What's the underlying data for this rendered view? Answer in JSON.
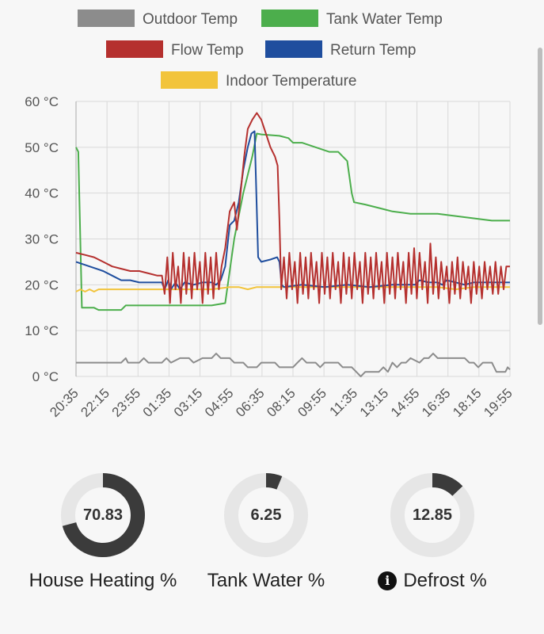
{
  "chart_data": {
    "type": "line",
    "yunit": "°C",
    "ylim": [
      0,
      60
    ],
    "yticks": [
      "0 °C",
      "10 °C",
      "20 °C",
      "30 °C",
      "40 °C",
      "50 °C",
      "60 °C"
    ],
    "xlim": [
      0,
      96
    ],
    "xtick_labels": [
      "20:35",
      "22:15",
      "23:55",
      "01:35",
      "03:15",
      "04:55",
      "06:35",
      "08:15",
      "09:55",
      "11:35",
      "13:15",
      "14:55",
      "16:35",
      "18:15",
      "19:55"
    ],
    "legend_position": "top",
    "grid": true,
    "series": [
      {
        "name": "Outdoor Temp",
        "color": "#8c8c8c",
        "points": [
          [
            0,
            3
          ],
          [
            10,
            3
          ],
          [
            11,
            4
          ],
          [
            11.5,
            3
          ],
          [
            14,
            3
          ],
          [
            15,
            4
          ],
          [
            16,
            3
          ],
          [
            19,
            3
          ],
          [
            20,
            4
          ],
          [
            21,
            3
          ],
          [
            23,
            4
          ],
          [
            25,
            4
          ],
          [
            26,
            3
          ],
          [
            28,
            4
          ],
          [
            30,
            4
          ],
          [
            31,
            5
          ],
          [
            32,
            4
          ],
          [
            34,
            4
          ],
          [
            35,
            3
          ],
          [
            37,
            3
          ],
          [
            38,
            2
          ],
          [
            40,
            2
          ],
          [
            41,
            3
          ],
          [
            44,
            3
          ],
          [
            45,
            2
          ],
          [
            48,
            2
          ],
          [
            49,
            3
          ],
          [
            50,
            4
          ],
          [
            51,
            3
          ],
          [
            53,
            3
          ],
          [
            54,
            2
          ],
          [
            55,
            3
          ],
          [
            58,
            3
          ],
          [
            59,
            2
          ],
          [
            61,
            2
          ],
          [
            62,
            1
          ],
          [
            63,
            0
          ],
          [
            64,
            1
          ],
          [
            67,
            1
          ],
          [
            68,
            2
          ],
          [
            69,
            1
          ],
          [
            70,
            3
          ],
          [
            71,
            2
          ],
          [
            72,
            3
          ],
          [
            73,
            3
          ],
          [
            74,
            4
          ],
          [
            76,
            3
          ],
          [
            77,
            4
          ],
          [
            78,
            4
          ],
          [
            79,
            5
          ],
          [
            80,
            4
          ],
          [
            86,
            4
          ],
          [
            87,
            3
          ],
          [
            88,
            3
          ],
          [
            89,
            2
          ],
          [
            90,
            3
          ],
          [
            92,
            3
          ],
          [
            93,
            1
          ],
          [
            95,
            1
          ],
          [
            95.5,
            2
          ],
          [
            96,
            1.5
          ]
        ]
      },
      {
        "name": "Tank Water Temp",
        "color": "#4cae4c",
        "points": [
          [
            0,
            50
          ],
          [
            0.5,
            49
          ],
          [
            1.3,
            15
          ],
          [
            4,
            15
          ],
          [
            5,
            14.5
          ],
          [
            10,
            14.5
          ],
          [
            11,
            15.5
          ],
          [
            30,
            15.5
          ],
          [
            33,
            16
          ],
          [
            35,
            30
          ],
          [
            37,
            40
          ],
          [
            39,
            48
          ],
          [
            40,
            53
          ],
          [
            41,
            52.8
          ],
          [
            45,
            52.5
          ],
          [
            47,
            52
          ],
          [
            48,
            51
          ],
          [
            50,
            51
          ],
          [
            53,
            50
          ],
          [
            56,
            49
          ],
          [
            58,
            49
          ],
          [
            59,
            48
          ],
          [
            60,
            47
          ],
          [
            61,
            40
          ],
          [
            61.5,
            38
          ],
          [
            64,
            37.5
          ],
          [
            66,
            37
          ],
          [
            68,
            36.5
          ],
          [
            70,
            36
          ],
          [
            74,
            35.5
          ],
          [
            80,
            35.5
          ],
          [
            84,
            35
          ],
          [
            88,
            34.5
          ],
          [
            92,
            34
          ],
          [
            96,
            34
          ]
        ]
      },
      {
        "name": "Flow Temp",
        "color": "#b5302e",
        "points": [
          [
            0,
            27
          ],
          [
            2,
            26.5
          ],
          [
            4,
            26
          ],
          [
            6,
            25
          ],
          [
            8,
            24
          ],
          [
            10,
            23.5
          ],
          [
            12,
            23
          ],
          [
            14,
            23
          ],
          [
            16,
            22.5
          ],
          [
            18,
            22
          ],
          [
            19,
            22
          ],
          [
            19.6,
            18
          ],
          [
            20.2,
            26
          ],
          [
            20.8,
            16
          ],
          [
            21.4,
            27
          ],
          [
            22,
            19
          ],
          [
            22.6,
            24
          ],
          [
            23.2,
            16
          ],
          [
            23.8,
            27
          ],
          [
            24.4,
            18
          ],
          [
            25,
            26
          ],
          [
            25.6,
            17
          ],
          [
            26.2,
            27
          ],
          [
            26.8,
            19
          ],
          [
            27.4,
            25
          ],
          [
            28,
            16
          ],
          [
            28.6,
            27
          ],
          [
            29.2,
            18
          ],
          [
            29.8,
            26
          ],
          [
            30.4,
            17
          ],
          [
            31,
            27
          ],
          [
            31.6,
            19
          ],
          [
            32.2,
            24
          ],
          [
            33,
            28
          ],
          [
            34,
            36
          ],
          [
            35,
            38
          ],
          [
            35.6,
            32
          ],
          [
            36.4,
            40
          ],
          [
            37.2,
            48
          ],
          [
            38,
            54
          ],
          [
            39,
            56
          ],
          [
            40,
            57.5
          ],
          [
            41,
            56
          ],
          [
            42,
            53
          ],
          [
            43,
            50
          ],
          [
            44,
            48
          ],
          [
            44.6,
            46
          ],
          [
            45,
            34
          ],
          [
            45.4,
            19
          ],
          [
            46,
            26
          ],
          [
            46.6,
            17
          ],
          [
            47.2,
            27
          ],
          [
            47.8,
            19
          ],
          [
            48.4,
            25
          ],
          [
            49,
            16
          ],
          [
            49.6,
            27
          ],
          [
            50.2,
            18
          ],
          [
            50.8,
            26
          ],
          [
            51.4,
            17
          ],
          [
            52,
            27
          ],
          [
            52.6,
            19
          ],
          [
            53.2,
            25
          ],
          [
            53.8,
            16
          ],
          [
            54.4,
            27
          ],
          [
            55,
            18
          ],
          [
            55.6,
            26
          ],
          [
            56.2,
            17
          ],
          [
            56.8,
            27
          ],
          [
            57.4,
            19
          ],
          [
            58,
            25
          ],
          [
            58.6,
            16
          ],
          [
            59.2,
            27
          ],
          [
            59.8,
            18
          ],
          [
            60.4,
            26
          ],
          [
            61,
            17
          ],
          [
            61.6,
            27
          ],
          [
            62.2,
            19
          ],
          [
            62.8,
            25
          ],
          [
            63.4,
            16
          ],
          [
            64,
            27
          ],
          [
            64.6,
            18
          ],
          [
            65.2,
            26
          ],
          [
            65.8,
            17
          ],
          [
            66.4,
            27
          ],
          [
            67,
            19
          ],
          [
            67.6,
            25
          ],
          [
            68.2,
            16
          ],
          [
            68.8,
            27
          ],
          [
            69.4,
            18
          ],
          [
            70,
            26
          ],
          [
            70.6,
            17
          ],
          [
            71.2,
            27
          ],
          [
            71.8,
            19
          ],
          [
            72.4,
            25
          ],
          [
            73,
            16
          ],
          [
            73.6,
            27
          ],
          [
            74.2,
            18
          ],
          [
            74.8,
            28
          ],
          [
            75.4,
            17
          ],
          [
            76,
            27
          ],
          [
            76.6,
            19
          ],
          [
            77.2,
            25
          ],
          [
            77.8,
            16
          ],
          [
            78.4,
            29
          ],
          [
            79,
            18
          ],
          [
            79.6,
            26
          ],
          [
            80.2,
            17
          ],
          [
            80.8,
            25
          ],
          [
            81.4,
            19
          ],
          [
            82,
            24
          ],
          [
            82.6,
            16
          ],
          [
            83.2,
            25
          ],
          [
            83.8,
            18
          ],
          [
            84.4,
            26
          ],
          [
            85,
            17
          ],
          [
            85.6,
            25
          ],
          [
            86.2,
            19
          ],
          [
            86.8,
            24
          ],
          [
            87.4,
            16
          ],
          [
            88,
            25
          ],
          [
            88.6,
            18
          ],
          [
            89.2,
            24
          ],
          [
            89.8,
            17
          ],
          [
            90.4,
            25
          ],
          [
            91,
            19
          ],
          [
            91.6,
            24
          ],
          [
            92.2,
            18
          ],
          [
            92.8,
            25
          ],
          [
            93.4,
            18
          ],
          [
            94,
            24
          ],
          [
            94.6,
            19
          ],
          [
            95.2,
            24
          ],
          [
            96,
            24
          ]
        ]
      },
      {
        "name": "Return Temp",
        "color": "#1f4e9e",
        "points": [
          [
            0,
            25
          ],
          [
            3,
            24
          ],
          [
            6,
            23
          ],
          [
            8,
            22
          ],
          [
            10,
            21
          ],
          [
            12,
            21
          ],
          [
            14,
            20.5
          ],
          [
            17,
            20.5
          ],
          [
            19,
            20.5
          ],
          [
            19.6,
            19
          ],
          [
            20.4,
            21
          ],
          [
            21,
            19
          ],
          [
            22,
            20.5
          ],
          [
            23,
            19
          ],
          [
            24,
            20.5
          ],
          [
            26,
            20
          ],
          [
            28,
            20.5
          ],
          [
            30,
            20.5
          ],
          [
            31,
            20
          ],
          [
            32,
            21
          ],
          [
            33,
            24
          ],
          [
            34,
            33
          ],
          [
            35,
            34
          ],
          [
            36,
            38
          ],
          [
            37,
            45
          ],
          [
            38,
            50
          ],
          [
            38.8,
            53
          ],
          [
            39.5,
            53.5
          ],
          [
            40.3,
            26
          ],
          [
            41,
            25
          ],
          [
            43,
            25.5
          ],
          [
            44.5,
            26
          ],
          [
            45,
            25
          ],
          [
            45.5,
            20
          ],
          [
            46,
            19.5
          ],
          [
            50,
            20
          ],
          [
            55,
            19.5
          ],
          [
            60,
            20
          ],
          [
            65,
            19.5
          ],
          [
            70,
            20
          ],
          [
            75,
            20
          ],
          [
            76,
            21
          ],
          [
            78,
            20.5
          ],
          [
            80,
            20.5
          ],
          [
            81,
            20
          ],
          [
            82,
            21
          ],
          [
            84,
            20.5
          ],
          [
            86,
            20
          ],
          [
            88,
            20.5
          ],
          [
            90,
            20.5
          ],
          [
            96,
            20.5
          ]
        ]
      },
      {
        "name": "Indoor Temperature",
        "color": "#f2c43b",
        "points": [
          [
            0,
            18.5
          ],
          [
            1,
            19
          ],
          [
            2,
            18.5
          ],
          [
            3,
            19
          ],
          [
            4,
            18.5
          ],
          [
            5,
            19
          ],
          [
            6,
            19
          ],
          [
            10,
            19
          ],
          [
            14,
            19
          ],
          [
            18,
            19
          ],
          [
            22,
            19
          ],
          [
            26,
            19
          ],
          [
            30,
            19
          ],
          [
            34,
            19.5
          ],
          [
            36,
            19.5
          ],
          [
            38,
            19
          ],
          [
            40,
            19.5
          ],
          [
            44,
            19.5
          ],
          [
            48,
            19.5
          ],
          [
            52,
            19.5
          ],
          [
            56,
            19.5
          ],
          [
            60,
            19.5
          ],
          [
            64,
            19.5
          ],
          [
            68,
            19.5
          ],
          [
            72,
            19.5
          ],
          [
            76,
            19.5
          ],
          [
            80,
            19.5
          ],
          [
            84,
            19
          ],
          [
            88,
            19.5
          ],
          [
            92,
            19.5
          ],
          [
            96,
            19.5
          ]
        ]
      }
    ]
  },
  "gauges": [
    {
      "value": "70.83",
      "fraction": 0.7083,
      "label": "House Heating %",
      "color": "#3b3b3b"
    },
    {
      "value": "6.25",
      "fraction": 0.0625,
      "label": "Tank Water %",
      "color": "#3b3b3b"
    },
    {
      "value": "12.85",
      "fraction": 0.1285,
      "label": "Defrost %",
      "color": "#3b3b3b",
      "info_icon": "info-circle-icon"
    }
  ],
  "colors": {
    "gauge_track": "#e6e6e6",
    "grid": "#d9d9d9",
    "axis": "#aaaaaa"
  }
}
